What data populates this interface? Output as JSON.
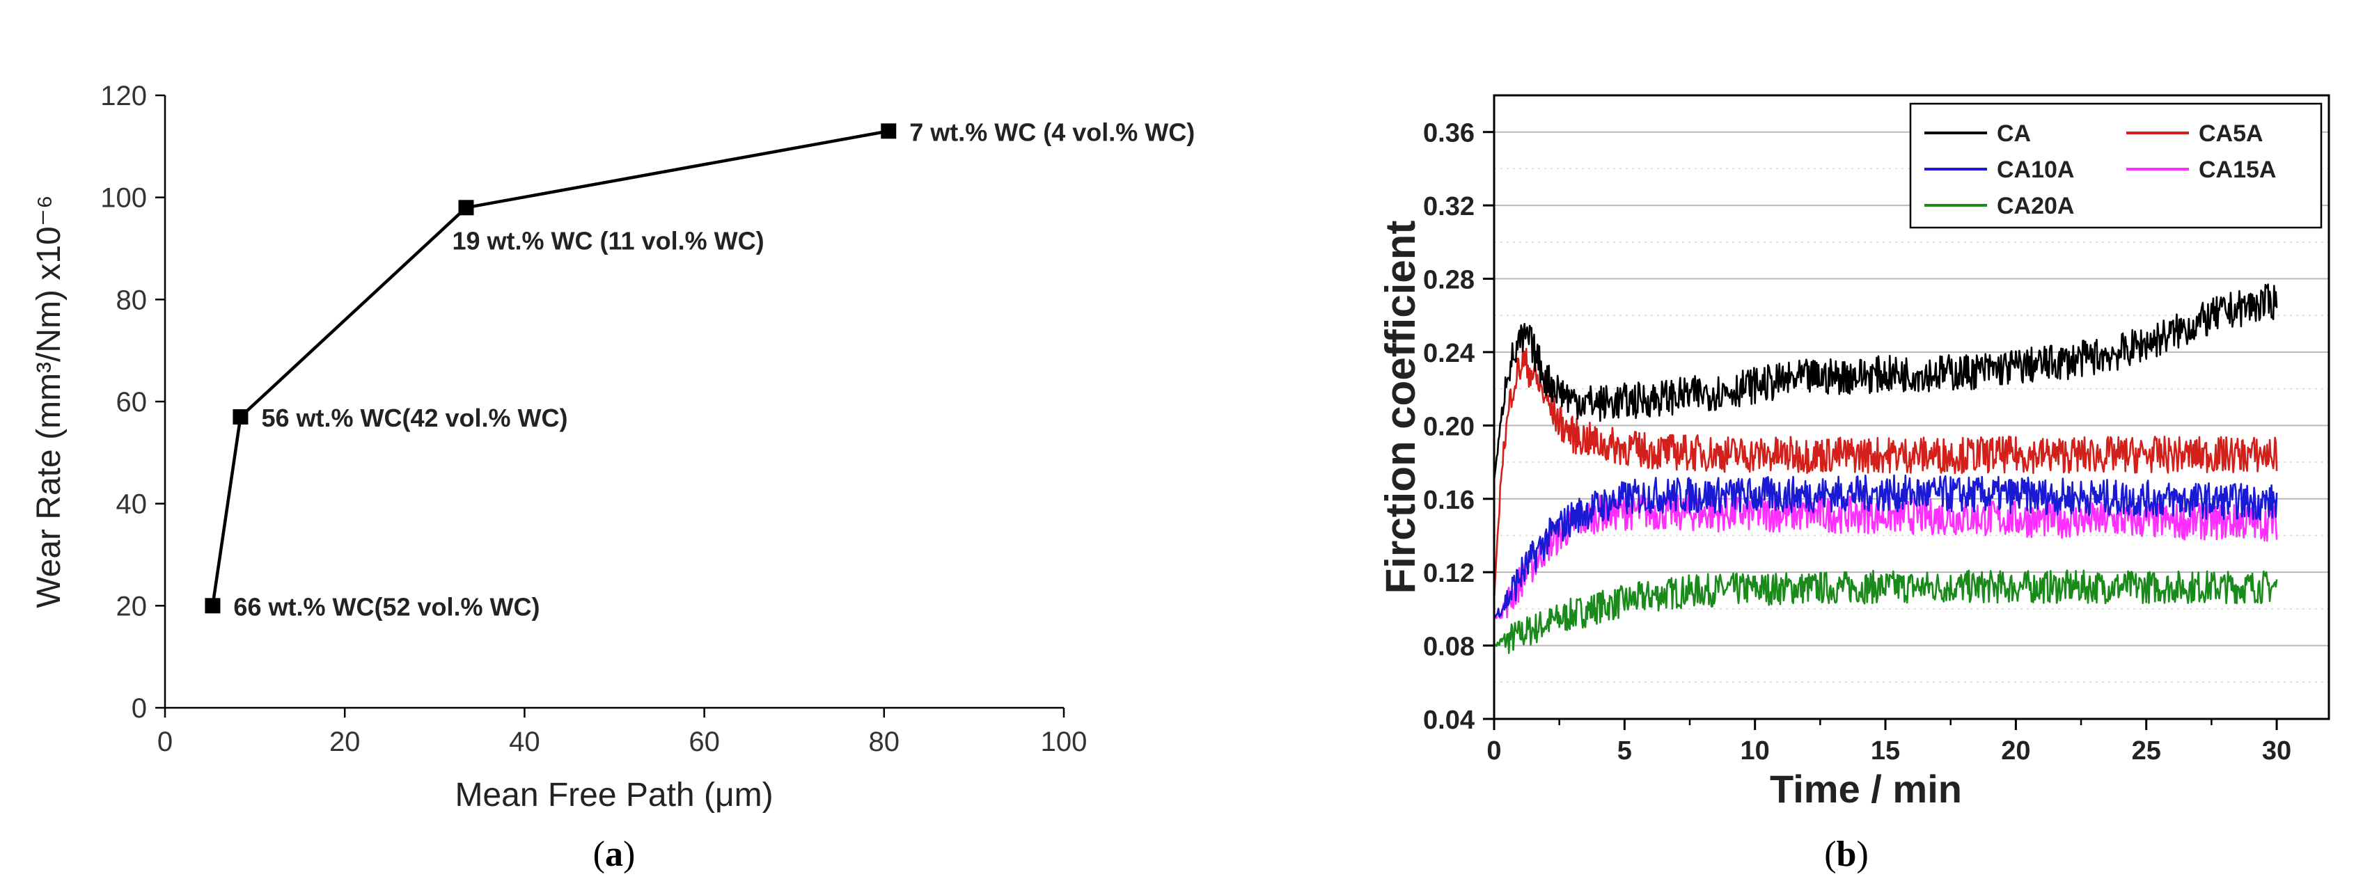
{
  "panels": {
    "a": {
      "caption_letter": "a"
    },
    "b": {
      "caption_letter": "b"
    }
  },
  "chart_data": [
    {
      "panel": "a",
      "type": "line",
      "title": "",
      "xlabel": "Mean Free Path (μm)",
      "ylabel": "Wear Rate (mm³/Nm) x10⁻⁶",
      "xlim": [
        0,
        100
      ],
      "ylim": [
        0,
        120
      ],
      "xticks": [
        0,
        20,
        40,
        60,
        80,
        100
      ],
      "yticks": [
        0,
        20,
        40,
        60,
        80,
        100,
        120
      ],
      "grid": false,
      "marker": "square",
      "color": "#000000",
      "points": [
        {
          "x": 5.3,
          "y": 20,
          "label": "66 wt.% WC(52 vol.% WC)",
          "label_side": "right"
        },
        {
          "x": 8.4,
          "y": 57,
          "label": "56 wt.% WC(42 vol.% WC)",
          "label_side": "right"
        },
        {
          "x": 33.5,
          "y": 98,
          "label": "19 wt.% WC (11 vol.% WC)",
          "label_side": "below"
        },
        {
          "x": 80.5,
          "y": 113,
          "label": "7 wt.% WC (4 vol.% WC)",
          "label_side": "right"
        }
      ]
    },
    {
      "panel": "b",
      "type": "line",
      "title": "",
      "xlabel": "Time / min",
      "ylabel": "Firction coefficient",
      "xlim": [
        0,
        32
      ],
      "ylim": [
        0.04,
        0.38
      ],
      "xticks": [
        0,
        5,
        10,
        15,
        20,
        25,
        30
      ],
      "yticks": [
        0.04,
        0.08,
        0.12,
        0.16,
        0.2,
        0.24,
        0.28,
        0.32,
        0.36
      ],
      "ytick_labels": [
        "0.04",
        "0.08",
        "0.12",
        "0.16",
        "0.20",
        "0.24",
        "0.28",
        "0.32",
        "0.36"
      ],
      "grid": true,
      "legend": "top-right",
      "series": [
        {
          "name": "CA",
          "color": "#000000",
          "noise": 0.01,
          "x": [
            0,
            0.5,
            1,
            1.3,
            2,
            3,
            4,
            5,
            7,
            9,
            10,
            12,
            15,
            18,
            20,
            22,
            24,
            26,
            28,
            30
          ],
          "y": [
            0.17,
            0.23,
            0.245,
            0.248,
            0.225,
            0.214,
            0.212,
            0.213,
            0.216,
            0.219,
            0.222,
            0.226,
            0.228,
            0.229,
            0.232,
            0.235,
            0.24,
            0.25,
            0.262,
            0.268
          ]
        },
        {
          "name": "CA5A",
          "color": "#d4201a",
          "noise": 0.01,
          "x": [
            0,
            0.3,
            0.7,
            1.1,
            1.5,
            2,
            2.5,
            3,
            4,
            5,
            6,
            8,
            10,
            15,
            20,
            25,
            30
          ],
          "y": [
            0.105,
            0.18,
            0.222,
            0.235,
            0.228,
            0.214,
            0.202,
            0.195,
            0.19,
            0.188,
            0.186,
            0.185,
            0.184,
            0.184,
            0.184,
            0.184,
            0.184
          ]
        },
        {
          "name": "CA10A",
          "color": "#1a1ad4",
          "noise": 0.01,
          "x": [
            0,
            0.5,
            1,
            2,
            3,
            4,
            5,
            6,
            8,
            10,
            15,
            20,
            25,
            30
          ],
          "y": [
            0.095,
            0.105,
            0.118,
            0.138,
            0.15,
            0.156,
            0.16,
            0.162,
            0.162,
            0.162,
            0.163,
            0.162,
            0.16,
            0.158
          ]
        },
        {
          "name": "CA15A",
          "color": "#ff30ff",
          "noise": 0.01,
          "x": [
            0,
            0.5,
            1,
            2,
            3,
            4,
            5,
            6,
            8,
            10,
            15,
            20,
            25,
            30
          ],
          "y": [
            0.095,
            0.103,
            0.115,
            0.134,
            0.146,
            0.152,
            0.153,
            0.153,
            0.152,
            0.152,
            0.151,
            0.149,
            0.148,
            0.147
          ]
        },
        {
          "name": "CA20A",
          "color": "#1a8a1a",
          "noise": 0.009,
          "x": [
            0,
            1,
            2,
            3,
            4,
            5,
            6,
            7,
            8,
            10,
            15,
            20,
            25,
            30
          ],
          "y": [
            0.08,
            0.086,
            0.092,
            0.097,
            0.101,
            0.104,
            0.107,
            0.109,
            0.11,
            0.111,
            0.112,
            0.112,
            0.112,
            0.112
          ]
        }
      ]
    }
  ]
}
